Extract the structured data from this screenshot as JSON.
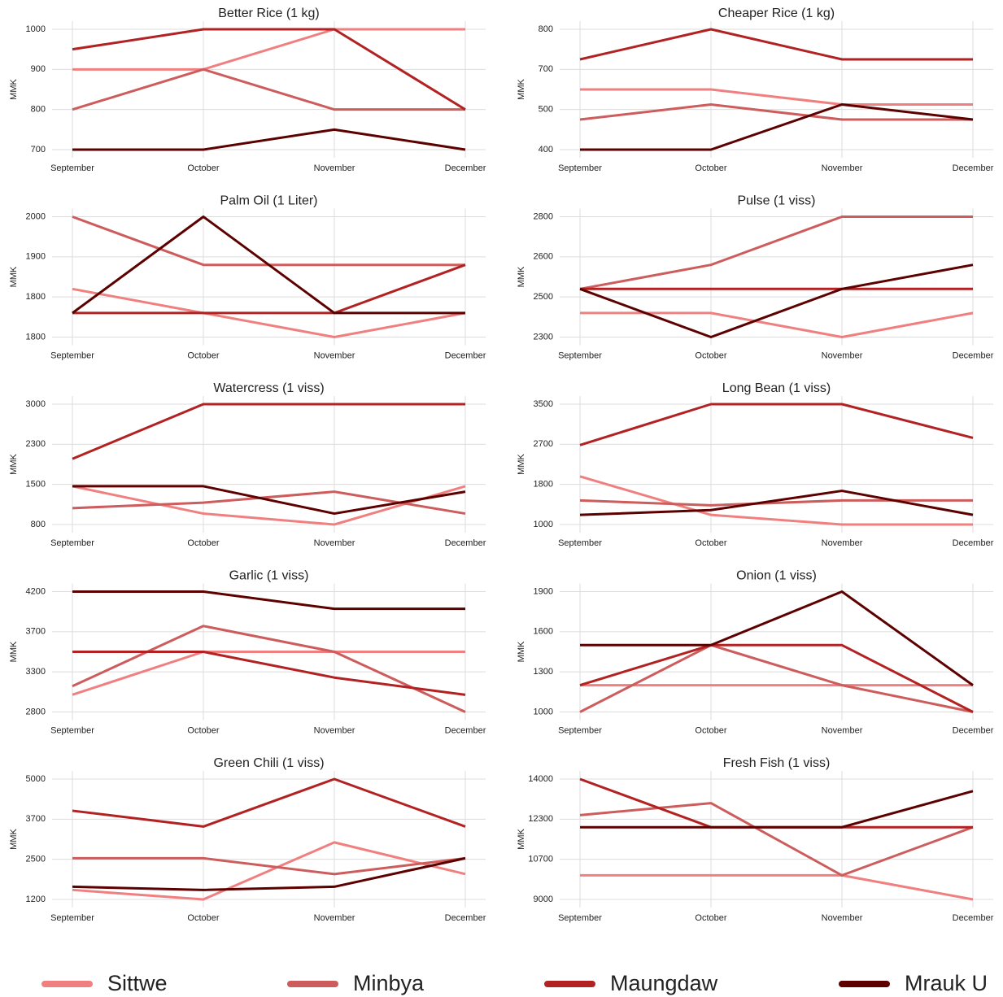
{
  "chart_data": [
    {
      "type": "line",
      "title": "Better Rice (1 kg)",
      "y_label": "MMK",
      "categories": [
        "September",
        "October",
        "November",
        "December"
      ],
      "ylim": [
        700,
        1000
      ],
      "yticks": [
        700,
        800,
        900,
        1000
      ],
      "grid": true,
      "series": [
        {
          "name": "Sittwe",
          "color": "#f08080",
          "values": [
            900,
            900,
            1000,
            1000
          ]
        },
        {
          "name": "Minbya",
          "color": "#cd5c5c",
          "values": [
            800,
            900,
            800,
            800
          ]
        },
        {
          "name": "Maungdaw",
          "color": "#b22222",
          "values": [
            950,
            1000,
            1000,
            800
          ]
        },
        {
          "name": "Mrauk U",
          "color": "#5c0000",
          "values": [
            700,
            700,
            750,
            700
          ]
        }
      ]
    },
    {
      "type": "line",
      "title": "Cheaper Rice (1 kg)",
      "y_label": "MMK",
      "categories": [
        "September",
        "October",
        "November",
        "December"
      ],
      "ylim": [
        400,
        800
      ],
      "yticks": [
        400,
        {
          "value": 533.3,
          "label": "500"
        },
        {
          "value": 666.7,
          "label": "700"
        },
        800
      ],
      "grid": true,
      "series": [
        {
          "name": "Sittwe",
          "color": "#f08080",
          "values": [
            600,
            600,
            550,
            550
          ]
        },
        {
          "name": "Minbya",
          "color": "#cd5c5c",
          "values": [
            500,
            550,
            500,
            500
          ]
        },
        {
          "name": "Maungdaw",
          "color": "#b22222",
          "values": [
            700,
            800,
            700,
            700
          ]
        },
        {
          "name": "Mrauk U",
          "color": "#5c0000",
          "values": [
            400,
            400,
            550,
            500
          ]
        }
      ]
    },
    {
      "type": "line",
      "title": "Palm Oil (1 Liter)",
      "y_label": "MMK",
      "categories": [
        "September",
        "October",
        "November",
        "December"
      ],
      "ylim": [
        1750,
        2000
      ],
      "yticks": [
        {
          "value": 1750,
          "label": "1800"
        },
        {
          "value": 1833.3,
          "label": "1800"
        },
        {
          "value": 1916.7,
          "label": "1900"
        },
        2000
      ],
      "grid": true,
      "series": [
        {
          "name": "Sittwe",
          "color": "#f08080",
          "values": [
            1850,
            1800,
            1750,
            1800
          ]
        },
        {
          "name": "Minbya",
          "color": "#cd5c5c",
          "values": [
            2000,
            1900,
            1900,
            1900
          ]
        },
        {
          "name": "Maungdaw",
          "color": "#b22222",
          "values": [
            1800,
            1800,
            1800,
            1900
          ]
        },
        {
          "name": "Mrauk U",
          "color": "#5c0000",
          "values": [
            1800,
            2000,
            1800,
            1800
          ]
        }
      ]
    },
    {
      "type": "line",
      "title": "Pulse (1 viss)",
      "y_label": "MMK",
      "categories": [
        "September",
        "October",
        "November",
        "December"
      ],
      "ylim": [
        2300,
        2800
      ],
      "yticks": [
        2300,
        {
          "value": 2466.7,
          "label": "2500"
        },
        {
          "value": 2633.3,
          "label": "2600"
        },
        2800
      ],
      "grid": true,
      "series": [
        {
          "name": "Sittwe",
          "color": "#f08080",
          "values": [
            2400,
            2400,
            2300,
            2400
          ]
        },
        {
          "name": "Minbya",
          "color": "#cd5c5c",
          "values": [
            2500,
            2600,
            2800,
            2800
          ]
        },
        {
          "name": "Maungdaw",
          "color": "#b22222",
          "values": [
            2500,
            2500,
            2500,
            2500
          ]
        },
        {
          "name": "Mrauk U",
          "color": "#5c0000",
          "values": [
            2500,
            2300,
            2500,
            2600
          ]
        }
      ]
    },
    {
      "type": "line",
      "title": "Watercress (1 viss)",
      "y_label": "MMK",
      "categories": [
        "September",
        "October",
        "November",
        "December"
      ],
      "ylim": [
        800,
        3000
      ],
      "yticks": [
        800,
        {
          "value": 1533.3,
          "label": "1500"
        },
        {
          "value": 2266.7,
          "label": "2300"
        },
        3000
      ],
      "grid": true,
      "series": [
        {
          "name": "Sittwe",
          "color": "#f08080",
          "values": [
            1500,
            1000,
            800,
            1500
          ]
        },
        {
          "name": "Minbya",
          "color": "#cd5c5c",
          "values": [
            1100,
            1200,
            1400,
            1000
          ]
        },
        {
          "name": "Maungdaw",
          "color": "#b22222",
          "values": [
            2000,
            3000,
            3000,
            3000
          ]
        },
        {
          "name": "Mrauk U",
          "color": "#5c0000",
          "values": [
            1500,
            1500,
            1000,
            1400
          ]
        }
      ]
    },
    {
      "type": "line",
      "title": "Long Bean (1 viss)",
      "y_label": "MMK",
      "categories": [
        "September",
        "October",
        "November",
        "December"
      ],
      "ylim": [
        1000,
        3500
      ],
      "yticks": [
        1000,
        {
          "value": 1833.3,
          "label": "1800"
        },
        {
          "value": 2666.7,
          "label": "2700"
        },
        3500
      ],
      "grid": true,
      "series": [
        {
          "name": "Sittwe",
          "color": "#f08080",
          "values": [
            2000,
            1200,
            1000,
            1000
          ]
        },
        {
          "name": "Minbya",
          "color": "#cd5c5c",
          "values": [
            1500,
            1400,
            1500,
            1500
          ]
        },
        {
          "name": "Maungdaw",
          "color": "#b22222",
          "values": [
            2650,
            3500,
            3500,
            2800
          ]
        },
        {
          "name": "Mrauk U",
          "color": "#5c0000",
          "values": [
            1200,
            1300,
            1700,
            1200
          ]
        }
      ]
    },
    {
      "type": "line",
      "title": "Garlic (1 viss)",
      "y_label": "MMK",
      "categories": [
        "September",
        "October",
        "November",
        "December"
      ],
      "ylim": [
        2800,
        4200
      ],
      "yticks": [
        2800,
        {
          "value": 3266.7,
          "label": "3300"
        },
        {
          "value": 3733.3,
          "label": "3700"
        },
        4200
      ],
      "grid": true,
      "series": [
        {
          "name": "Sittwe",
          "color": "#f08080",
          "values": [
            3000,
            3500,
            3500,
            3500
          ]
        },
        {
          "name": "Minbya",
          "color": "#cd5c5c",
          "values": [
            3100,
            3800,
            3500,
            2800
          ]
        },
        {
          "name": "Maungdaw",
          "color": "#b22222",
          "values": [
            3500,
            3500,
            3200,
            3000
          ]
        },
        {
          "name": "Mrauk U",
          "color": "#5c0000",
          "values": [
            4200,
            4200,
            4000,
            4000
          ]
        }
      ]
    },
    {
      "type": "line",
      "title": "Onion (1 viss)",
      "y_label": "MMK",
      "categories": [
        "September",
        "October",
        "November",
        "December"
      ],
      "ylim": [
        1000,
        1900
      ],
      "yticks": [
        1000,
        1300,
        1600,
        1900
      ],
      "grid": true,
      "series": [
        {
          "name": "Sittwe",
          "color": "#f08080",
          "values": [
            1200,
            1200,
            1200,
            1200
          ]
        },
        {
          "name": "Minbya",
          "color": "#cd5c5c",
          "values": [
            1000,
            1500,
            1200,
            1000
          ]
        },
        {
          "name": "Maungdaw",
          "color": "#b22222",
          "values": [
            1200,
            1500,
            1500,
            1000
          ]
        },
        {
          "name": "Mrauk U",
          "color": "#5c0000",
          "values": [
            1500,
            1500,
            1900,
            1200
          ]
        }
      ]
    },
    {
      "type": "line",
      "title": "Green Chili (1 viss)",
      "y_label": "MMK",
      "categories": [
        "September",
        "October",
        "November",
        "December"
      ],
      "ylim": [
        1200,
        5000
      ],
      "yticks": [
        1200,
        {
          "value": 2466.7,
          "label": "2500"
        },
        {
          "value": 3733.3,
          "label": "3700"
        },
        5000
      ],
      "grid": true,
      "series": [
        {
          "name": "Sittwe",
          "color": "#f08080",
          "values": [
            1500,
            1200,
            3000,
            2000
          ]
        },
        {
          "name": "Minbya",
          "color": "#cd5c5c",
          "values": [
            2500,
            2500,
            2000,
            2500
          ]
        },
        {
          "name": "Maungdaw",
          "color": "#b22222",
          "values": [
            4000,
            3500,
            5000,
            3500
          ]
        },
        {
          "name": "Mrauk U",
          "color": "#5c0000",
          "values": [
            1600,
            1500,
            1600,
            2500
          ]
        }
      ]
    },
    {
      "type": "line",
      "title": "Fresh Fish (1 viss)",
      "y_label": "MMK",
      "categories": [
        "September",
        "October",
        "November",
        "December"
      ],
      "ylim": [
        9000,
        14000
      ],
      "yticks": [
        9000,
        {
          "value": 10666.7,
          "label": "10700"
        },
        {
          "value": 12333.3,
          "label": "12300"
        },
        14000
      ],
      "grid": true,
      "series": [
        {
          "name": "Sittwe",
          "color": "#f08080",
          "values": [
            10000,
            10000,
            10000,
            9000
          ]
        },
        {
          "name": "Minbya",
          "color": "#cd5c5c",
          "values": [
            12500,
            13000,
            10000,
            12000
          ]
        },
        {
          "name": "Maungdaw",
          "color": "#b22222",
          "values": [
            14000,
            12000,
            12000,
            12000
          ]
        },
        {
          "name": "Mrauk U",
          "color": "#5c0000",
          "values": [
            12000,
            12000,
            12000,
            13500
          ]
        }
      ]
    }
  ]
}
